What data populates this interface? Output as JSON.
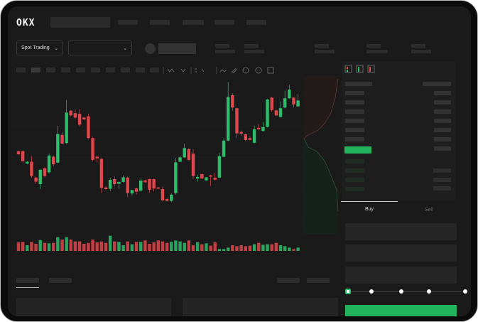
{
  "header": {
    "logo": "OKX"
  },
  "controls": {
    "market_type": "Spot Trading"
  },
  "order_form": {
    "tabs": [
      "Buy",
      "Sell"
    ],
    "active_tab": "Buy",
    "slider_level": 0
  },
  "colors": {
    "up": "#2ebd6b",
    "down": "#e0474c",
    "background": "#1a1a1a",
    "buy_button": "#24b35d"
  },
  "icons": {
    "chevron": "chevron-down-icon",
    "orderbook_views": [
      "orderbook-both-icon",
      "orderbook-bids-icon",
      "orderbook-asks-icon"
    ]
  },
  "chart_data": {
    "type": "candlestick",
    "grid": true,
    "candles": [
      {
        "o": 250,
        "c": 240,
        "h": 252,
        "l": 238
      },
      {
        "o": 250,
        "c": 218,
        "h": 252,
        "l": 214
      },
      {
        "o": 210,
        "c": 216,
        "h": 218,
        "l": 208
      },
      {
        "o": 216,
        "c": 170,
        "h": 234,
        "l": 165
      },
      {
        "o": 165,
        "c": 152,
        "h": 168,
        "l": 145
      },
      {
        "o": 144,
        "c": 190,
        "h": 192,
        "l": 128
      },
      {
        "o": 195,
        "c": 170,
        "h": 198,
        "l": 165
      },
      {
        "o": 182,
        "c": 236,
        "h": 242,
        "l": 178
      },
      {
        "o": 232,
        "c": 208,
        "h": 236,
        "l": 202
      },
      {
        "o": 213,
        "c": 305,
        "h": 332,
        "l": 211
      },
      {
        "o": 302,
        "c": 274,
        "h": 312,
        "l": 272
      },
      {
        "o": 276,
        "c": 374,
        "h": 415,
        "l": 274
      },
      {
        "o": 380,
        "c": 365,
        "h": 382,
        "l": 362
      },
      {
        "o": 372,
        "c": 358,
        "h": 384,
        "l": 354
      },
      {
        "o": 370,
        "c": 335,
        "h": 386,
        "l": 330
      },
      {
        "o": 358,
        "c": 352,
        "h": 360,
        "l": 350
      },
      {
        "o": 362,
        "c": 292,
        "h": 370,
        "l": 290
      },
      {
        "o": 292,
        "c": 222,
        "h": 296,
        "l": 218
      },
      {
        "o": 232,
        "c": 227,
        "h": 236,
        "l": 214
      },
      {
        "o": 225,
        "c": 132,
        "h": 228,
        "l": 116
      },
      {
        "o": 133,
        "c": 128,
        "h": 138,
        "l": 125
      },
      {
        "o": 129,
        "c": 158,
        "h": 163,
        "l": 122
      },
      {
        "o": 160,
        "c": 144,
        "h": 168,
        "l": 136
      },
      {
        "o": 145,
        "c": 151,
        "h": 152,
        "l": 128
      },
      {
        "o": 151,
        "c": 166,
        "h": 172,
        "l": 149
      },
      {
        "o": 165,
        "c": 115,
        "h": 168,
        "l": 102
      },
      {
        "o": 114,
        "c": 125,
        "h": 126,
        "l": 108
      },
      {
        "o": 130,
        "c": 120,
        "h": 132,
        "l": 110
      },
      {
        "o": 123,
        "c": 155,
        "h": 162,
        "l": 120
      },
      {
        "o": 156,
        "c": 150,
        "h": 158,
        "l": 148
      },
      {
        "o": 160,
        "c": 126,
        "h": 162,
        "l": 116
      },
      {
        "o": 160,
        "c": 130,
        "h": 162,
        "l": 120
      },
      {
        "o": 133,
        "c": 130,
        "h": 135,
        "l": 128
      },
      {
        "o": 128,
        "c": 92,
        "h": 136,
        "l": 88
      },
      {
        "o": 96,
        "c": 90,
        "h": 100,
        "l": 88
      },
      {
        "o": 90,
        "c": 110,
        "h": 114,
        "l": 86
      },
      {
        "o": 115,
        "c": 214,
        "h": 228,
        "l": 110
      },
      {
        "o": 216,
        "c": 230,
        "h": 235,
        "l": 214
      },
      {
        "o": 230,
        "c": 260,
        "h": 274,
        "l": 228
      },
      {
        "o": 256,
        "c": 222,
        "h": 260,
        "l": 218
      },
      {
        "o": 242,
        "c": 170,
        "h": 256,
        "l": 160
      },
      {
        "o": 162,
        "c": 167,
        "h": 174,
        "l": 152
      },
      {
        "o": 176,
        "c": 162,
        "h": 178,
        "l": 160
      },
      {
        "o": 156,
        "c": 166,
        "h": 167,
        "l": 155
      },
      {
        "o": 172,
        "c": 168,
        "h": 174,
        "l": 138
      },
      {
        "o": 164,
        "c": 158,
        "h": 180,
        "l": 156
      },
      {
        "o": 165,
        "c": 234,
        "h": 244,
        "l": 163
      },
      {
        "o": 232,
        "c": 284,
        "h": 292,
        "l": 230
      },
      {
        "o": 284,
        "c": 424,
        "h": 472,
        "l": 282
      },
      {
        "o": 430,
        "c": 390,
        "h": 436,
        "l": 380
      },
      {
        "o": 388,
        "c": 307,
        "h": 390,
        "l": 292
      },
      {
        "o": 312,
        "c": 306,
        "h": 316,
        "l": 300
      },
      {
        "o": 304,
        "c": 286,
        "h": 306,
        "l": 282
      },
      {
        "o": 292,
        "c": 286,
        "h": 298,
        "l": 284
      },
      {
        "o": 277,
        "c": 320,
        "h": 332,
        "l": 275
      },
      {
        "o": 325,
        "c": 320,
        "h": 338,
        "l": 318
      },
      {
        "o": 315,
        "c": 327,
        "h": 344,
        "l": 313
      },
      {
        "o": 328,
        "c": 416,
        "h": 418,
        "l": 326
      },
      {
        "o": 422,
        "c": 382,
        "h": 424,
        "l": 376
      },
      {
        "o": 381,
        "c": 365,
        "h": 383,
        "l": 363
      },
      {
        "o": 360,
        "c": 388,
        "h": 410,
        "l": 358
      },
      {
        "o": 390,
        "c": 420,
        "h": 444,
        "l": 388
      },
      {
        "o": 420,
        "c": 448,
        "h": 464,
        "l": 418
      },
      {
        "o": 422,
        "c": 400,
        "h": 424,
        "l": 390
      },
      {
        "o": 394,
        "c": 413,
        "h": 434,
        "l": 392
      }
    ],
    "volume": [
      36,
      38,
      24,
      38,
      30,
      46,
      34,
      32,
      34,
      58,
      48,
      58,
      48,
      40,
      40,
      30,
      34,
      48,
      36,
      40,
      34,
      64,
      40,
      38,
      24,
      40,
      28,
      38,
      38,
      44,
      30,
      36,
      44,
      40,
      34,
      38,
      44,
      40,
      34,
      44,
      24,
      36,
      28,
      32,
      22,
      36,
      8,
      8,
      14,
      24,
      20,
      24,
      20,
      22,
      28,
      34,
      26,
      28,
      28,
      34,
      24,
      20,
      14,
      8,
      14
    ]
  }
}
